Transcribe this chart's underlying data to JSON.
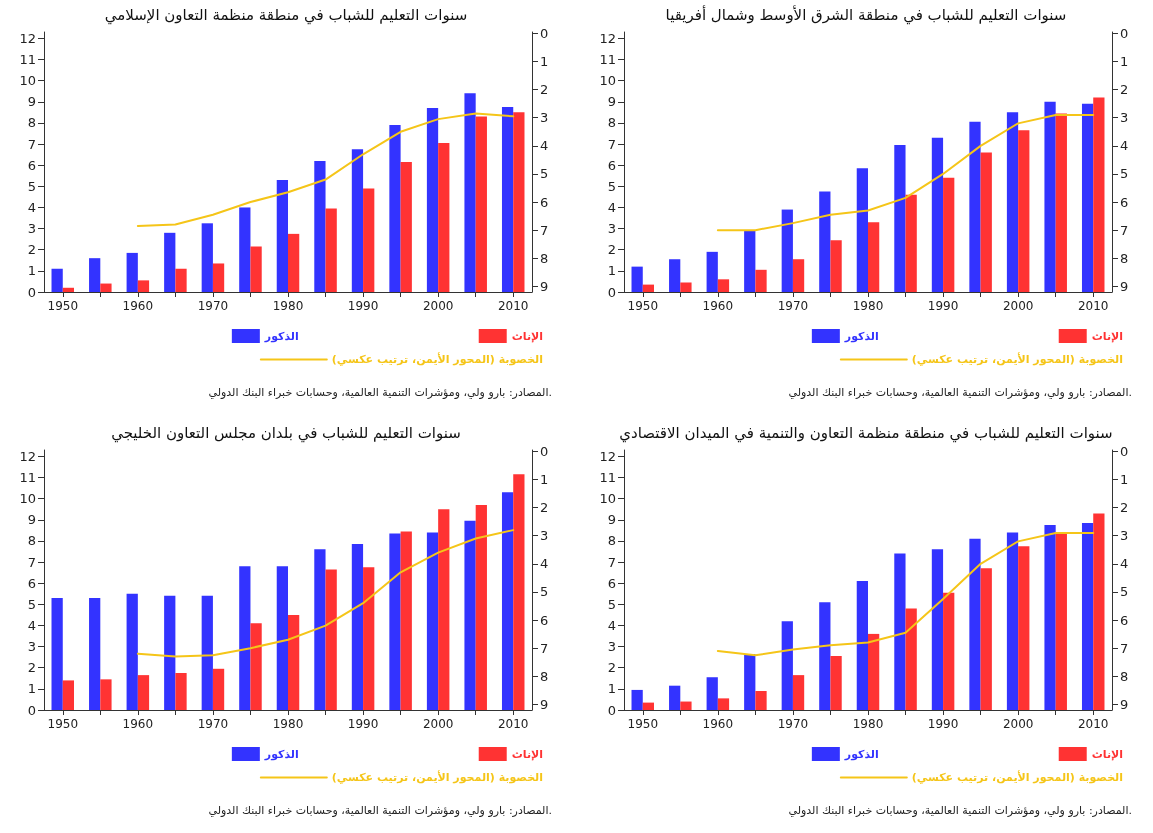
{
  "chart_data": [
    {
      "type": "bar",
      "title": "سنوات التعليم للشباب في منطقة منظمة التعاون الإسلامي",
      "categories": [
        "1950",
        null,
        "1960",
        null,
        "1970",
        null,
        "1980",
        null,
        "1990",
        null,
        "2000",
        null,
        "2010"
      ],
      "series": [
        {
          "name": "الذكور",
          "color": "#3333ff",
          "values": [
            1.1,
            1.6,
            1.85,
            2.8,
            3.25,
            4.0,
            5.3,
            6.2,
            6.75,
            7.9,
            8.7,
            9.4,
            8.75
          ]
        },
        {
          "name": "الإناث",
          "color": "#ff3333",
          "values": [
            0.2,
            0.4,
            0.55,
            1.1,
            1.35,
            2.15,
            2.75,
            3.95,
            4.9,
            6.15,
            7.05,
            8.3,
            8.5
          ]
        },
        {
          "name": "الخصوبة (المحور الأيمن، ترتيب عكسي)",
          "color": "#f5c518",
          "type": "line",
          "axis": "y2",
          "values": [
            null,
            null,
            6.85,
            6.8,
            6.45,
            6.0,
            5.65,
            5.2,
            4.3,
            3.5,
            3.05,
            2.85,
            2.95
          ]
        }
      ],
      "ylim": [
        0,
        12.3
      ],
      "yticks": [
        0,
        1,
        2,
        3,
        4,
        5,
        6,
        7,
        8,
        9,
        10,
        11,
        12
      ],
      "y2lim": [
        9.2,
        -0.05
      ],
      "y2ticks": [
        0,
        1,
        2,
        3,
        4,
        5,
        6,
        7,
        8,
        9
      ],
      "legend": "bottom",
      "grid": false,
      "marker": "none",
      "line_style": "solid",
      "annotations": [
        "المصادر: بارو ولي، ومؤشرات التنمية العالمية، وحسابات خبراء البنك الدولي."
      ]
    },
    {
      "type": "bar",
      "title": "سنوات التعليم للشباب في منطقة الشرق الأوسط وشمال أفريقيا",
      "categories": [
        "1950",
        null,
        "1960",
        null,
        "1970",
        null,
        "1980",
        null,
        "1990",
        null,
        "2000",
        null,
        "2010"
      ],
      "series": [
        {
          "name": "الذكور",
          "color": "#3333ff",
          "values": [
            1.2,
            1.55,
            1.9,
            2.9,
            3.9,
            4.75,
            5.85,
            6.95,
            7.3,
            8.05,
            8.5,
            9.0,
            8.9
          ]
        },
        {
          "name": "الإناث",
          "color": "#ff3333",
          "values": [
            0.35,
            0.45,
            0.6,
            1.05,
            1.55,
            2.45,
            3.3,
            4.6,
            5.4,
            6.6,
            7.65,
            8.45,
            9.2
          ]
        },
        {
          "name": "الخصوبة (المحور الأيمن، ترتيب عكسي)",
          "color": "#f5c518",
          "type": "line",
          "axis": "y2",
          "values": [
            null,
            null,
            7.0,
            7.0,
            6.75,
            6.45,
            6.3,
            5.85,
            5.0,
            4.0,
            3.2,
            2.9,
            2.9
          ]
        }
      ],
      "ylim": [
        0,
        12.3
      ],
      "yticks": [
        0,
        1,
        2,
        3,
        4,
        5,
        6,
        7,
        8,
        9,
        10,
        11,
        12
      ],
      "y2lim": [
        9.2,
        -0.05
      ],
      "y2ticks": [
        0,
        1,
        2,
        3,
        4,
        5,
        6,
        7,
        8,
        9
      ],
      "legend": "bottom",
      "grid": false,
      "marker": "none",
      "line_style": "solid",
      "annotations": [
        "المصادر: بارو ولي، ومؤشرات التنمية العالمية، وحسابات خبراء البنك الدولي."
      ]
    },
    {
      "type": "bar",
      "title": "سنوات التعليم للشباب في بلدان مجلس التعاون الخليجي",
      "categories": [
        "1950",
        null,
        "1960",
        null,
        "1970",
        null,
        "1980",
        null,
        "1990",
        null,
        "2000",
        null,
        "2010"
      ],
      "series": [
        {
          "name": "الذكور",
          "color": "#3333ff",
          "values": [
            5.3,
            5.3,
            5.5,
            5.4,
            5.4,
            6.8,
            6.8,
            7.6,
            7.85,
            8.35,
            8.4,
            8.95,
            10.3
          ]
        },
        {
          "name": "الإناث",
          "color": "#ff3333",
          "values": [
            1.4,
            1.45,
            1.65,
            1.75,
            1.95,
            4.1,
            4.5,
            6.65,
            6.75,
            8.45,
            9.5,
            9.7,
            11.15
          ]
        },
        {
          "name": "الخصوبة (المحور الأيمن، ترتيب عكسي)",
          "color": "#f5c518",
          "type": "line",
          "axis": "y2",
          "values": [
            null,
            null,
            7.2,
            7.3,
            7.25,
            7.0,
            6.7,
            6.2,
            5.4,
            4.3,
            3.6,
            3.1,
            2.8
          ]
        }
      ],
      "ylim": [
        0,
        12.3
      ],
      "yticks": [
        0,
        1,
        2,
        3,
        4,
        5,
        6,
        7,
        8,
        9,
        10,
        11,
        12
      ],
      "y2lim": [
        9.2,
        -0.05
      ],
      "y2ticks": [
        0,
        1,
        2,
        3,
        4,
        5,
        6,
        7,
        8,
        9
      ],
      "legend": "bottom",
      "grid": false,
      "marker": "none",
      "line_style": "solid",
      "annotations": [
        "المصادر: بارو ولي، ومؤشرات التنمية العالمية، وحسابات خبراء البنك الدولي."
      ]
    },
    {
      "type": "bar",
      "title": "سنوات التعليم للشباب في منطقة منظمة التعاون والتنمية في الميدان الاقتصادي",
      "categories": [
        "1950",
        null,
        "1960",
        null,
        "1970",
        null,
        "1980",
        null,
        "1990",
        null,
        "2000",
        null,
        "2010"
      ],
      "series": [
        {
          "name": "الذكور",
          "color": "#3333ff",
          "values": [
            0.95,
            1.15,
            1.55,
            2.65,
            4.2,
            5.1,
            6.1,
            7.4,
            7.6,
            8.1,
            8.4,
            8.75,
            8.85
          ]
        },
        {
          "name": "الإناث",
          "color": "#ff3333",
          "values": [
            0.35,
            0.4,
            0.55,
            0.9,
            1.65,
            2.55,
            3.6,
            4.8,
            5.55,
            6.7,
            7.75,
            8.35,
            9.3
          ]
        },
        {
          "name": "الخصوبة (المحور الأيمن، ترتيب عكسي)",
          "color": "#f5c518",
          "type": "line",
          "axis": "y2",
          "values": [
            null,
            null,
            7.1,
            7.25,
            7.05,
            6.9,
            6.8,
            6.45,
            5.25,
            4.0,
            3.2,
            2.9,
            2.9
          ]
        }
      ],
      "ylim": [
        0,
        12.3
      ],
      "yticks": [
        0,
        1,
        2,
        3,
        4,
        5,
        6,
        7,
        8,
        9,
        10,
        11,
        12
      ],
      "y2lim": [
        9.2,
        -0.05
      ],
      "y2ticks": [
        0,
        1,
        2,
        3,
        4,
        5,
        6,
        7,
        8,
        9
      ],
      "legend": "bottom",
      "grid": false,
      "marker": "none",
      "line_style": "solid",
      "annotations": [
        "المصادر: بارو ولي، ومؤشرات التنمية العالمية، وحسابات خبراء البنك الدولي."
      ]
    }
  ]
}
